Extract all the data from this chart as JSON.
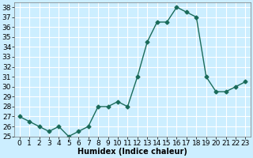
{
  "x": [
    0,
    1,
    2,
    3,
    4,
    5,
    6,
    7,
    8,
    9,
    10,
    11,
    12,
    13,
    14,
    15,
    16,
    17,
    18,
    19,
    20,
    21,
    22,
    23
  ],
  "y": [
    27,
    26.5,
    26,
    25.5,
    26,
    25,
    25.5,
    26,
    28,
    28,
    28.5,
    28,
    31,
    34.5,
    36.5,
    36.5,
    38,
    37.5,
    37,
    31,
    29.5,
    29.5,
    30,
    30.5
  ],
  "line_color": "#1a6b5a",
  "marker": "D",
  "marker_size": 2.5,
  "bg_color": "#cceeff",
  "grid_color": "#ffffff",
  "xlabel": "Humidex (Indice chaleur)",
  "ylabel": "",
  "xlim": [
    -0.5,
    23.5
  ],
  "ylim": [
    25,
    38.5
  ],
  "yticks": [
    25,
    26,
    27,
    28,
    29,
    30,
    31,
    32,
    33,
    34,
    35,
    36,
    37,
    38
  ],
  "xticks": [
    0,
    1,
    2,
    3,
    4,
    5,
    6,
    7,
    8,
    9,
    10,
    11,
    12,
    13,
    14,
    15,
    16,
    17,
    18,
    19,
    20,
    21,
    22,
    23
  ],
  "label_fontsize": 7,
  "tick_fontsize": 6.5
}
